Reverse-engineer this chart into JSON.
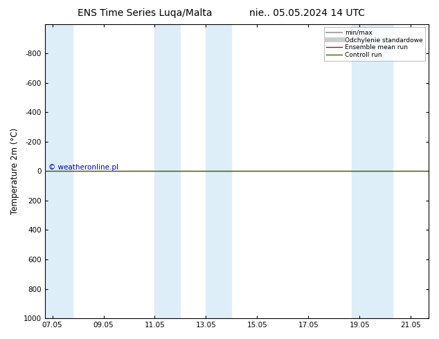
{
  "title_left": "ENS Time Series Luqa/Malta",
  "title_right": "nie.. 05.05.2024 14 UTC",
  "ylabel": "Temperature 2m (°C)",
  "ylim_top": -1000,
  "ylim_bottom": 1000,
  "yticks": [
    -800,
    -600,
    -400,
    -200,
    0,
    200,
    400,
    600,
    800,
    1000
  ],
  "xtick_labels": [
    "07.05",
    "09.05",
    "11.05",
    "13.05",
    "15.05",
    "17.05",
    "19.05",
    "21.05"
  ],
  "x_days": [
    0,
    2,
    4,
    6,
    8,
    10,
    12,
    14
  ],
  "x_min": -0.3,
  "x_max": 14.7,
  "shaded_regions": [
    [
      -0.3,
      0.8
    ],
    [
      4.0,
      5.0
    ],
    [
      6.0,
      7.0
    ],
    [
      11.7,
      13.3
    ]
  ],
  "shade_color": "#ddeef8",
  "line_y": 0,
  "line_color_ensemble": "#cc0000",
  "line_color_control": "#336600",
  "line_color_minmax": "#aaaaaa",
  "line_color_stddev": "#cccccc",
  "watermark": "© weatheronline.pl",
  "watermark_color": "#0000bb",
  "legend_items": [
    {
      "label": "min/max",
      "color": "#aaaaaa",
      "lw": 1.5
    },
    {
      "label": "Odchylenie standardowe",
      "color": "#cccccc",
      "lw": 5
    },
    {
      "label": "Ensemble mean run",
      "color": "#cc0000",
      "lw": 1.0
    },
    {
      "label": "Controll run",
      "color": "#336600",
      "lw": 1.0
    }
  ],
  "bg_color": "#ffffff",
  "plot_bg_color": "#ffffff",
  "title_fontsize": 10,
  "tick_fontsize": 7.5,
  "label_fontsize": 8.5
}
